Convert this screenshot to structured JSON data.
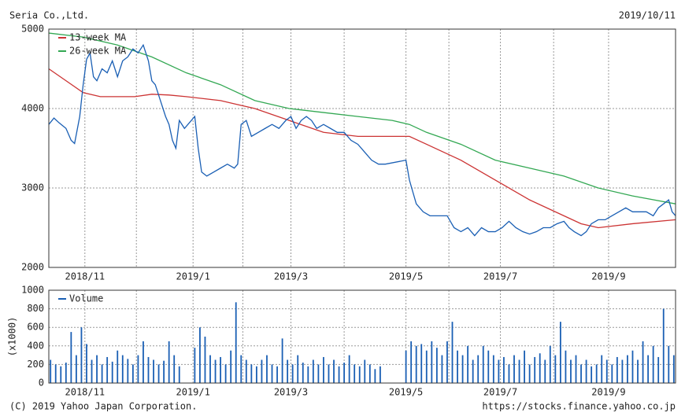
{
  "header": {
    "company": "Seria Co.,Ltd.",
    "date": "2019/10/11"
  },
  "chart_data": [
    {
      "type": "line",
      "xlim": [
        0,
        365
      ],
      "xticks": [
        {
          "value": 21,
          "label": "2018/11"
        },
        {
          "value": 84,
          "label": "2019/1"
        },
        {
          "value": 141,
          "label": "2019/3"
        },
        {
          "value": 208,
          "label": "2019/5"
        },
        {
          "value": 263,
          "label": "2019/7"
        },
        {
          "value": 326,
          "label": "2019/9"
        }
      ],
      "xminor": [
        51,
        113,
        172,
        233,
        294
      ],
      "ylim": [
        2000,
        5000
      ],
      "yticks": [
        2000,
        3000,
        4000,
        5000
      ],
      "grid": true,
      "series": [
        {
          "name": "13-week MA",
          "color": "#cc3333",
          "legend": true,
          "x": [
            0,
            10,
            20,
            30,
            50,
            60,
            70,
            80,
            100,
            110,
            120,
            140,
            160,
            180,
            200,
            210,
            220,
            240,
            260,
            280,
            300,
            310,
            320,
            340,
            365
          ],
          "values": [
            4500,
            4350,
            4200,
            4150,
            4150,
            4180,
            4170,
            4150,
            4100,
            4050,
            4000,
            3850,
            3700,
            3650,
            3650,
            3650,
            3550,
            3350,
            3100,
            2850,
            2650,
            2550,
            2500,
            2550,
            2600
          ]
        },
        {
          "name": "26-week MA",
          "color": "#33a853",
          "legend": true,
          "x": [
            0,
            20,
            40,
            60,
            80,
            100,
            120,
            140,
            160,
            180,
            200,
            210,
            220,
            240,
            260,
            280,
            300,
            320,
            340,
            365
          ],
          "values": [
            4950,
            4900,
            4800,
            4650,
            4450,
            4300,
            4100,
            4000,
            3950,
            3900,
            3850,
            3800,
            3700,
            3550,
            3350,
            3250,
            3150,
            3000,
            2900,
            2800
          ]
        },
        {
          "color": "#1a5fb4",
          "legend": false,
          "x": [
            0,
            3,
            6,
            10,
            13,
            15,
            18,
            20,
            22,
            24,
            26,
            28,
            31,
            34,
            37,
            40,
            43,
            46,
            49,
            52,
            55,
            58,
            60,
            62,
            65,
            68,
            70,
            72,
            74,
            76,
            79,
            85,
            87,
            89,
            92,
            96,
            100,
            104,
            108,
            110,
            112,
            115,
            118,
            122,
            126,
            130,
            134,
            138,
            141,
            144,
            147,
            150,
            153,
            156,
            160,
            164,
            168,
            172,
            176,
            180,
            184,
            188,
            192,
            196,
            208,
            210,
            214,
            218,
            222,
            226,
            232,
            236,
            240,
            244,
            248,
            252,
            256,
            260,
            264,
            268,
            272,
            276,
            280,
            284,
            288,
            292,
            296,
            300,
            303,
            306,
            310,
            313,
            316,
            320,
            324,
            328,
            332,
            336,
            340,
            344,
            348,
            352,
            355,
            358,
            361,
            363,
            365
          ],
          "values": [
            3800,
            3880,
            3820,
            3750,
            3600,
            3560,
            3900,
            4300,
            4620,
            4700,
            4400,
            4350,
            4500,
            4450,
            4600,
            4400,
            4600,
            4650,
            4750,
            4700,
            4800,
            4600,
            4350,
            4300,
            4100,
            3900,
            3800,
            3600,
            3500,
            3850,
            3750,
            3900,
            3500,
            3200,
            3150,
            3200,
            3250,
            3300,
            3250,
            3300,
            3800,
            3850,
            3650,
            3700,
            3750,
            3800,
            3750,
            3850,
            3900,
            3750,
            3850,
            3900,
            3850,
            3750,
            3800,
            3750,
            3700,
            3700,
            3600,
            3550,
            3450,
            3350,
            3300,
            3300,
            3350,
            3100,
            2800,
            2700,
            2650,
            2650,
            2650,
            2500,
            2450,
            2500,
            2400,
            2500,
            2450,
            2450,
            2500,
            2580,
            2500,
            2450,
            2420,
            2450,
            2500,
            2500,
            2550,
            2580,
            2500,
            2450,
            2400,
            2450,
            2550,
            2600,
            2600,
            2650,
            2700,
            2750,
            2700,
            2700,
            2700,
            2650,
            2750,
            2800,
            2850,
            2700,
            2650
          ]
        }
      ]
    },
    {
      "type": "bar",
      "ylabel": "(x1000)",
      "xlim": [
        0,
        365
      ],
      "xticks": [
        {
          "value": 21,
          "label": "2018/11"
        },
        {
          "value": 84,
          "label": "2019/1"
        },
        {
          "value": 141,
          "label": "2019/3"
        },
        {
          "value": 208,
          "label": "2019/5"
        },
        {
          "value": 263,
          "label": "2019/7"
        },
        {
          "value": 326,
          "label": "2019/9"
        }
      ],
      "xminor": [
        51,
        113,
        172,
        233,
        294
      ],
      "ylim": [
        0,
        1000
      ],
      "yticks": [
        0,
        200,
        400,
        600,
        800,
        1000
      ],
      "grid": true,
      "series": [
        {
          "name": "Volume",
          "color": "#1a5fb4",
          "legend": true,
          "x": [
            1,
            4,
            7,
            10,
            13,
            16,
            19,
            22,
            25,
            28,
            31,
            34,
            37,
            40,
            43,
            46,
            49,
            52,
            55,
            58,
            61,
            64,
            67,
            70,
            73,
            76,
            85,
            88,
            91,
            94,
            97,
            100,
            103,
            106,
            109,
            112,
            115,
            118,
            121,
            124,
            127,
            130,
            133,
            136,
            139,
            142,
            145,
            148,
            151,
            154,
            157,
            160,
            163,
            166,
            169,
            172,
            175,
            178,
            181,
            184,
            187,
            190,
            193,
            208,
            211,
            214,
            217,
            220,
            223,
            226,
            229,
            232,
            235,
            238,
            241,
            244,
            247,
            250,
            253,
            256,
            259,
            262,
            265,
            268,
            271,
            274,
            277,
            280,
            283,
            286,
            289,
            292,
            295,
            298,
            301,
            304,
            307,
            310,
            313,
            316,
            319,
            322,
            325,
            328,
            331,
            334,
            337,
            340,
            343,
            346,
            349,
            352,
            355,
            358,
            361,
            364
          ],
          "values": [
            250,
            200,
            180,
            220,
            550,
            300,
            600,
            420,
            250,
            300,
            200,
            280,
            230,
            350,
            300,
            260,
            200,
            300,
            450,
            280,
            250,
            200,
            240,
            450,
            300,
            180,
            380,
            600,
            500,
            300,
            250,
            280,
            200,
            350,
            870,
            300,
            250,
            200,
            180,
            250,
            300,
            200,
            180,
            480,
            250,
            200,
            300,
            220,
            180,
            250,
            200,
            280,
            200,
            250,
            180,
            220,
            300,
            200,
            180,
            250,
            200,
            150,
            180,
            350,
            450,
            400,
            420,
            350,
            450,
            380,
            300,
            450,
            660,
            350,
            300,
            400,
            250,
            300,
            400,
            350,
            300,
            250,
            280,
            200,
            300,
            250,
            350,
            200,
            280,
            320,
            250,
            400,
            300,
            660,
            350,
            250,
            300,
            200,
            250,
            180,
            200,
            300,
            250,
            200,
            280,
            250,
            300,
            350,
            250,
            450,
            300,
            400,
            280,
            800,
            400,
            300
          ]
        }
      ]
    }
  ],
  "footer": {
    "copyright": "(C) 2019 Yahoo Japan Corporation.",
    "url": "https://stocks.finance.yahoo.co.jp"
  }
}
